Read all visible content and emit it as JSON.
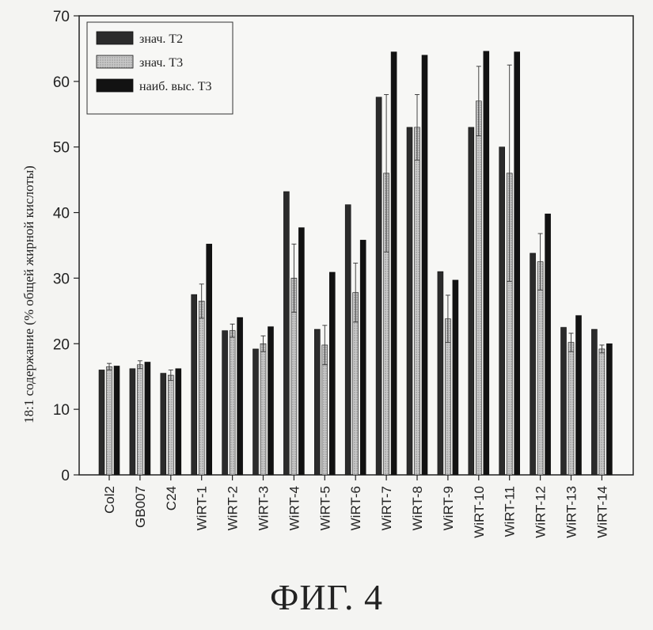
{
  "figure": {
    "caption": "ФИГ. 4"
  },
  "chart_data": {
    "type": "bar",
    "title": "",
    "xlabel": "",
    "ylabel": "18:1 содержание (% общей жирной кислоты)",
    "ylim": [
      0,
      70
    ],
    "yticks": [
      0,
      10,
      20,
      30,
      40,
      50,
      60,
      70
    ],
    "grid": false,
    "legend_position": "top-left",
    "categories": [
      "Col2",
      "GB007",
      "C24",
      "WiRT-1",
      "WiRT-2",
      "WiRT-3",
      "WiRT-4",
      "WiRT-5",
      "WiRT-6",
      "WiRT-7",
      "WiRT-8",
      "WiRT-9",
      "WiRT-10",
      "WiRT-11",
      "WiRT-12",
      "WiRT-13",
      "WiRT-14"
    ],
    "series": [
      {
        "name": "знач. T2",
        "color": "#2a2a2a",
        "values": [
          16.0,
          16.2,
          15.5,
          27.5,
          22.0,
          19.2,
          43.2,
          22.2,
          41.2,
          57.6,
          53.0,
          31.0,
          53.0,
          50.0,
          33.8,
          22.5,
          22.2
        ]
      },
      {
        "name": "знач. T3",
        "color": "#bdbdbd",
        "values": [
          16.5,
          16.8,
          15.2,
          26.5,
          22.0,
          20.0,
          30.0,
          19.8,
          27.8,
          46.0,
          53.0,
          23.8,
          57.0,
          46.0,
          32.5,
          20.2,
          19.2
        ],
        "errors": [
          0.5,
          0.6,
          0.8,
          2.6,
          1.0,
          1.2,
          5.2,
          3.0,
          4.5,
          12.0,
          5.0,
          3.6,
          5.3,
          16.5,
          4.3,
          1.4,
          0.6
        ]
      },
      {
        "name": "наиб. выс. T3",
        "color": "#111111",
        "values": [
          16.6,
          17.2,
          16.2,
          35.2,
          24.0,
          22.6,
          37.7,
          30.9,
          35.8,
          64.5,
          64.0,
          29.7,
          64.6,
          64.5,
          39.8,
          24.3,
          20.0
        ]
      }
    ]
  }
}
